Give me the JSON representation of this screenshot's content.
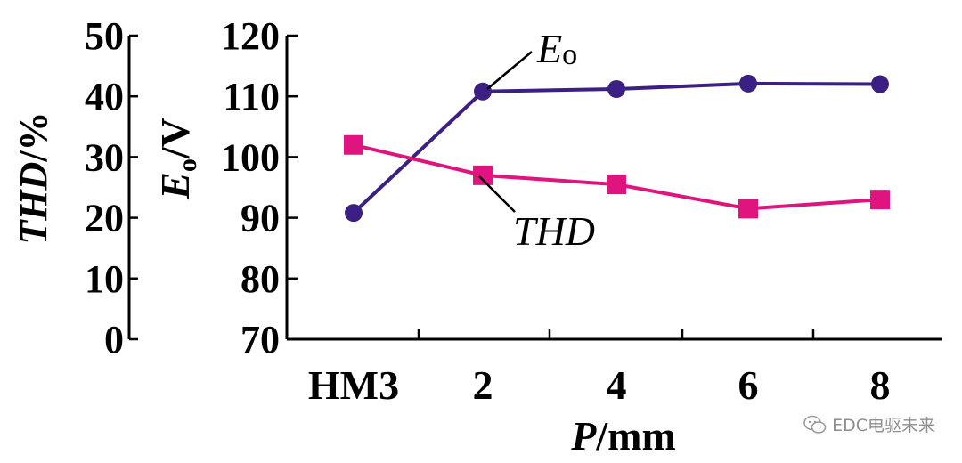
{
  "chart_data": {
    "type": "line",
    "categories": [
      "HM3",
      "2",
      "4",
      "6",
      "8"
    ],
    "xlabel_italic": "P",
    "xlabel_unit": "/mm",
    "y_left": {
      "label_italic": "THD",
      "label_unit": "/%",
      "ticks": [
        "0",
        "10",
        "20",
        "30",
        "40",
        "50"
      ],
      "ylim": [
        0,
        50
      ]
    },
    "y_right": {
      "label_main": "E",
      "label_sub": "o",
      "label_unit": "/V",
      "ticks": [
        "70",
        "80",
        "90",
        "100",
        "110",
        "120"
      ],
      "ylim": [
        70,
        120
      ]
    },
    "series": [
      {
        "name": "Eo",
        "label_main": "E",
        "label_sub": "o",
        "axis": "right",
        "color": "#3b1f82",
        "marker": "circle",
        "values": [
          90.8,
          110.8,
          111.2,
          112.1,
          112.0
        ]
      },
      {
        "name": "THD",
        "axis": "left",
        "color": "#e0147f",
        "marker": "square",
        "values": [
          32.0,
          27.0,
          25.5,
          21.5,
          23.0
        ]
      }
    ],
    "grid": false,
    "legend": "inline annotations"
  },
  "watermark": {
    "text": "EDC电驱未来"
  }
}
